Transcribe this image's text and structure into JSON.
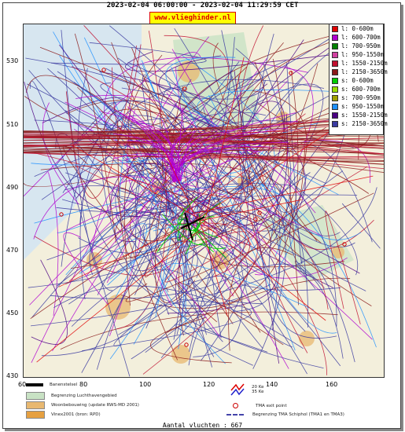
{
  "header": {
    "timerange": "2023-02-04 06:00:00 - 2023-02-04 11:29:59 CET",
    "site": "www.vlieghinder.nl"
  },
  "axes": {
    "y_ticks": [
      "530",
      "510",
      "490",
      "470",
      "450",
      "430"
    ],
    "x_ticks": [
      "60",
      "80",
      "100",
      "120",
      "140",
      "160"
    ]
  },
  "legend": {
    "items": [
      {
        "label": "l: 0-600m",
        "color": "#e00000"
      },
      {
        "label": "l: 600-700m",
        "color": "#b000d0"
      },
      {
        "label": "l: 700-950m",
        "color": "#008000"
      },
      {
        "label": "l: 950-1550m",
        "color": "#d040a0"
      },
      {
        "label": "l: 1550-2150m",
        "color": "#c01030"
      },
      {
        "label": "l: 2150-3650m",
        "color": "#8b1a1a"
      },
      {
        "label": "s: 0-600m",
        "color": "#00cc00"
      },
      {
        "label": "s: 600-700m",
        "color": "#99dd00"
      },
      {
        "label": "s: 700-950m",
        "color": "#a0a000"
      },
      {
        "label": "s: 950-1550m",
        "color": "#1e90ff"
      },
      {
        "label": "s: 1550-2150m",
        "color": "#4b0082"
      },
      {
        "label": "s: 2150-3650m",
        "color": "#3a3aa0"
      }
    ]
  },
  "map_legend": {
    "baan": "Banenstelsel",
    "luchthaven": "Begrenzing Luchthavengebied",
    "woon": "Woonbebouwing (update RWS-MD 2001)",
    "vinex": "Vinex2001 (bron: RPD)",
    "kw20": "20 Ke",
    "kw35": "35 Ke",
    "tma_exit": "TMA exit point",
    "tma_border": "Begrenzing TMA Schiphol  (TMA1 en TMA3)"
  },
  "footer": {
    "count": "Aantal vluchten : 667"
  },
  "colors": {
    "sea": "#d7e6f0",
    "land": "#f3efdc",
    "green": "#c8e2c4",
    "urban": "#e8b870"
  }
}
